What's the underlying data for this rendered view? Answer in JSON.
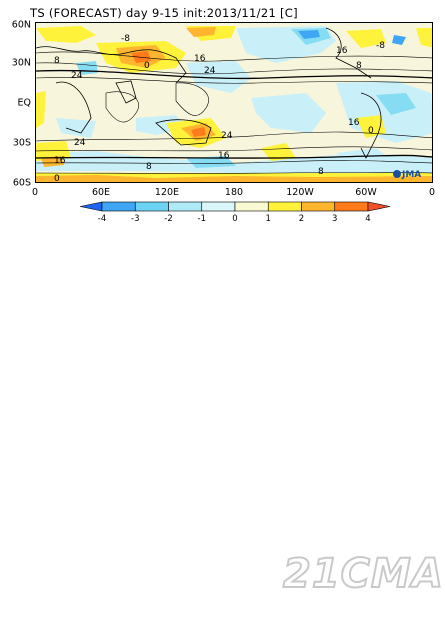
{
  "title": "TS (FORECAST) day 9-15 init:2013/11/21  [C]",
  "map": {
    "lat_labels": [
      "60N",
      "30N",
      "EQ",
      "30S",
      "60S"
    ],
    "lon_labels": [
      "0",
      "60E",
      "120E",
      "180",
      "120W",
      "60W",
      "0"
    ],
    "contour_labels": [
      "-8",
      "8",
      "16",
      "24",
      "0",
      "-8",
      "16",
      "24",
      "24",
      "16",
      "8",
      "0",
      "8",
      "24",
      "16",
      "0",
      "16",
      "8"
    ],
    "logo": "JMA"
  },
  "colorbar": {
    "tick_labels": [
      "-4",
      "-3",
      "-2",
      "-1",
      "0",
      "1",
      "2",
      "3",
      "4"
    ],
    "colors": [
      "#1e64f0",
      "#3fa6f5",
      "#6dd3f5",
      "#aeeaf8",
      "#d9f6fa",
      "#fafad2",
      "#fff23a",
      "#ffb52e",
      "#ff7a1a",
      "#f0502a"
    ]
  },
  "watermark": "21CMA"
}
